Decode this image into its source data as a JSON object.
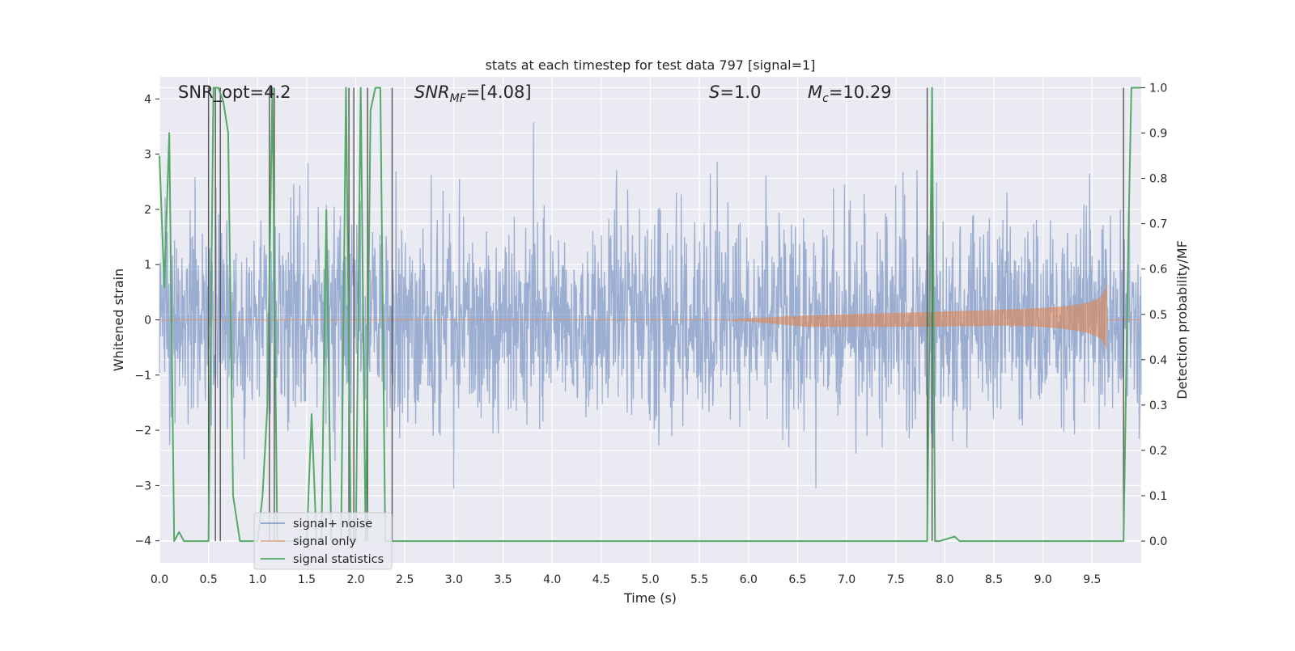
{
  "chart_data": {
    "type": "line",
    "title": "stats at each timestep for test data 797 [signal=1]",
    "xlabel": "Time (s)",
    "ylabel": "Whitened strain",
    "ylabel_right": "Detection probability/MF",
    "xlim": [
      0,
      10
    ],
    "ylim": [
      -4.4,
      4.4
    ],
    "ylim_right": [
      -0.048,
      1.024
    ],
    "x_ticks": [
      0.0,
      0.5,
      1.0,
      1.5,
      2.0,
      2.5,
      3.0,
      3.5,
      4.0,
      4.5,
      5.0,
      5.5,
      6.0,
      6.5,
      7.0,
      7.5,
      8.0,
      8.5,
      9.0,
      9.5
    ],
    "x_tick_labels": [
      "0.0",
      "0.5",
      "1.0",
      "1.5",
      "2.0",
      "2.5",
      "3.0",
      "3.5",
      "4.0",
      "4.5",
      "5.0",
      "5.5",
      "6.0",
      "6.5",
      "7.0",
      "7.5",
      "8.0",
      "8.5",
      "9.0",
      "9.5"
    ],
    "y_ticks": [
      -4,
      -3,
      -2,
      -1,
      0,
      1,
      2,
      3,
      4
    ],
    "y_tick_labels": [
      "−4",
      "−3",
      "−2",
      "−1",
      "0",
      "1",
      "2",
      "3",
      "4"
    ],
    "y_right_ticks": [
      0.0,
      0.1,
      0.2,
      0.3,
      0.4,
      0.5,
      0.6,
      0.7,
      0.8,
      0.9,
      1.0
    ],
    "y_right_tick_labels": [
      "0.0",
      "0.1",
      "0.2",
      "0.3",
      "0.4",
      "0.5",
      "0.6",
      "0.7",
      "0.8",
      "0.9",
      "1.0"
    ],
    "annotations": [
      {
        "text": "SNR_opt=4.2"
      },
      {
        "text": "SNR",
        "sub": "MF",
        "rest": "=[4.08]",
        "italic": true
      },
      {
        "text": "S",
        "rest": "=1.0",
        "italic": true
      },
      {
        "text": "M",
        "sub": "c",
        "rest": "=10.29",
        "italic": true
      }
    ],
    "legend": {
      "placement": "lower-left",
      "entries": [
        "signal+ noise",
        "signal only",
        "signal statistics"
      ]
    },
    "colors": {
      "signal_noise": "#4c72b0",
      "signal_only": "#dd8452",
      "signal_statistics": "#55a868",
      "vertical_markers": "#555555",
      "plot_background": "#eaeaf2",
      "grid": "#ffffff"
    },
    "grid": true,
    "series": [
      {
        "name": "signal+ noise",
        "kind": "noise",
        "sigma": 0.95,
        "amplitude_max": 4.0
      },
      {
        "name": "signal only",
        "kind": "chirp",
        "start": 5.8,
        "merger": 9.65,
        "amplitude_max": 0.75
      },
      {
        "name": "signal statistics",
        "axis": "right",
        "x": [
          0.0,
          0.05,
          0.1,
          0.15,
          0.2,
          0.25,
          0.3,
          0.5,
          0.55,
          0.6,
          0.65,
          0.7,
          0.75,
          0.82,
          0.9,
          1.0,
          1.05,
          1.1,
          1.15,
          1.2,
          1.25,
          1.3,
          1.4,
          1.5,
          1.55,
          1.6,
          1.65,
          1.7,
          1.75,
          1.8,
          1.85,
          1.9,
          1.95,
          2.0,
          2.05,
          2.1,
          2.15,
          2.2,
          2.25,
          2.3,
          2.35,
          2.4,
          2.45,
          7.82,
          7.87,
          7.9,
          7.95,
          8.1,
          8.15,
          8.2,
          8.8,
          9.82,
          9.87,
          9.9,
          10.0
        ],
        "y": [
          0.85,
          0.56,
          0.9,
          0.0,
          0.02,
          0.0,
          0.0,
          0.0,
          1.0,
          1.0,
          0.97,
          0.9,
          0.1,
          0.0,
          0.0,
          0.0,
          0.1,
          0.3,
          1.0,
          0.0,
          0.0,
          0.0,
          0.0,
          0.0,
          0.28,
          0.0,
          0.0,
          0.73,
          0.0,
          0.0,
          0.0,
          1.0,
          0.0,
          0.0,
          1.0,
          0.0,
          0.95,
          1.0,
          1.0,
          0.0,
          0.0,
          0.0,
          0.0,
          0.0,
          1.0,
          0.0,
          0.0,
          0.01,
          0.0,
          0.0,
          0.0,
          0.0,
          0.68,
          1.0,
          1.0
        ]
      }
    ],
    "vertical_markers": [
      0.5,
      0.57,
      0.62,
      1.12,
      1.17,
      1.93,
      1.98,
      2.12,
      2.37,
      7.82,
      7.87,
      9.82
    ]
  }
}
